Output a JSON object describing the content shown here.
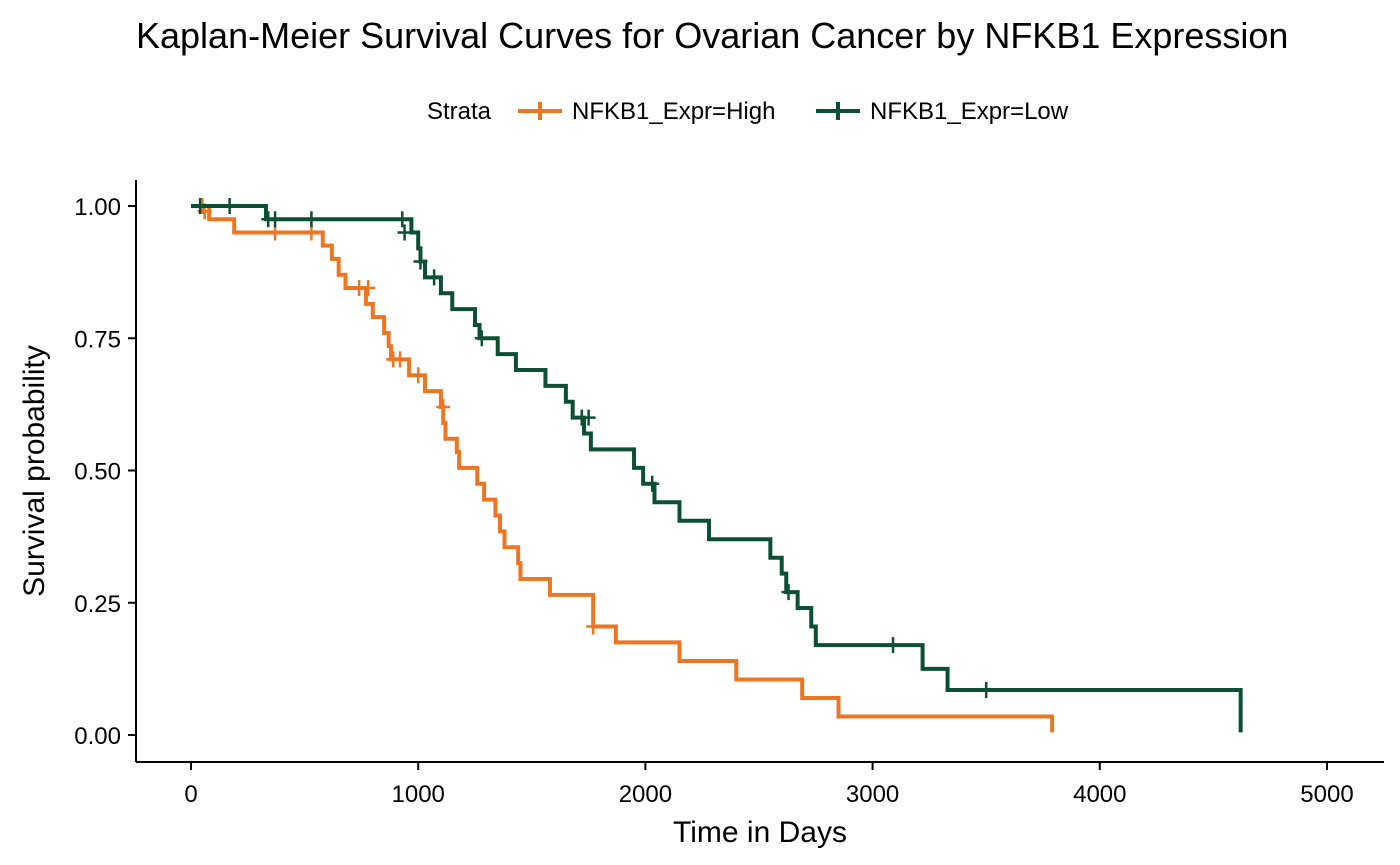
{
  "chart_data": {
    "type": "line",
    "title": "Kaplan-Meier Survival Curves for Ovarian Cancer by NFKB1 Expression",
    "xlabel": "Time in Days",
    "ylabel": "Survival probability",
    "xlim": [
      0,
      5000
    ],
    "ylim": [
      0,
      1
    ],
    "x_ticks": [
      "0",
      "1000",
      "2000",
      "3000",
      "4000",
      "5000"
    ],
    "y_ticks": [
      "0.00",
      "0.25",
      "0.50",
      "0.75",
      "1.00"
    ],
    "x_tick_values": [
      0,
      1000,
      2000,
      3000,
      4000,
      5000
    ],
    "y_tick_values": [
      0,
      0.25,
      0.5,
      0.75,
      1.0
    ],
    "grid": false,
    "legend": {
      "title": "Strata",
      "position": "top"
    },
    "series": [
      {
        "name": "NFKB1_Expr=High",
        "color": "#EE7623",
        "steps": [
          [
            0,
            1.0
          ],
          [
            80,
            0.975
          ],
          [
            190,
            0.95
          ],
          [
            520,
            0.95
          ],
          [
            580,
            0.925
          ],
          [
            620,
            0.9
          ],
          [
            650,
            0.87
          ],
          [
            680,
            0.845
          ],
          [
            770,
            0.815
          ],
          [
            800,
            0.79
          ],
          [
            850,
            0.76
          ],
          [
            870,
            0.735
          ],
          [
            880,
            0.71
          ],
          [
            960,
            0.68
          ],
          [
            1030,
            0.65
          ],
          [
            1100,
            0.62
          ],
          [
            1110,
            0.59
          ],
          [
            1120,
            0.56
          ],
          [
            1170,
            0.535
          ],
          [
            1180,
            0.505
          ],
          [
            1260,
            0.475
          ],
          [
            1290,
            0.445
          ],
          [
            1340,
            0.415
          ],
          [
            1360,
            0.385
          ],
          [
            1380,
            0.355
          ],
          [
            1440,
            0.325
          ],
          [
            1450,
            0.295
          ],
          [
            1580,
            0.265
          ],
          [
            1770,
            0.205
          ],
          [
            1870,
            0.175
          ],
          [
            2150,
            0.14
          ],
          [
            2400,
            0.105
          ],
          [
            2690,
            0.07
          ],
          [
            2850,
            0.035
          ],
          [
            3790,
            0.005
          ]
        ],
        "end": 3790,
        "censored": [
          [
            50,
            1.0
          ],
          [
            60,
            0.99
          ],
          [
            370,
            0.95
          ],
          [
            530,
            0.95
          ],
          [
            740,
            0.845
          ],
          [
            780,
            0.845
          ],
          [
            890,
            0.71
          ],
          [
            920,
            0.71
          ],
          [
            1000,
            0.68
          ],
          [
            1110,
            0.62
          ],
          [
            1770,
            0.205
          ]
        ]
      },
      {
        "name": "NFKB1_Expr=Low",
        "color": "#0B5032",
        "steps": [
          [
            0,
            1.0
          ],
          [
            330,
            0.975
          ],
          [
            970,
            0.95
          ],
          [
            1000,
            0.92
          ],
          [
            1010,
            0.895
          ],
          [
            1030,
            0.865
          ],
          [
            1100,
            0.835
          ],
          [
            1150,
            0.805
          ],
          [
            1250,
            0.775
          ],
          [
            1270,
            0.75
          ],
          [
            1350,
            0.72
          ],
          [
            1430,
            0.69
          ],
          [
            1560,
            0.66
          ],
          [
            1650,
            0.63
          ],
          [
            1680,
            0.6
          ],
          [
            1730,
            0.57
          ],
          [
            1760,
            0.54
          ],
          [
            1950,
            0.505
          ],
          [
            1990,
            0.475
          ],
          [
            2040,
            0.44
          ],
          [
            2150,
            0.405
          ],
          [
            2280,
            0.37
          ],
          [
            2550,
            0.335
          ],
          [
            2600,
            0.305
          ],
          [
            2620,
            0.27
          ],
          [
            2670,
            0.24
          ],
          [
            2730,
            0.205
          ],
          [
            2750,
            0.17
          ],
          [
            3220,
            0.125
          ],
          [
            3330,
            0.085
          ],
          [
            4620,
            0.005
          ]
        ],
        "end": 4620,
        "censored": [
          [
            40,
            1.0
          ],
          [
            170,
            1.0
          ],
          [
            340,
            0.975
          ],
          [
            370,
            0.975
          ],
          [
            530,
            0.975
          ],
          [
            930,
            0.975
          ],
          [
            940,
            0.95
          ],
          [
            1010,
            0.895
          ],
          [
            1070,
            0.865
          ],
          [
            1280,
            0.75
          ],
          [
            1720,
            0.6
          ],
          [
            1750,
            0.6
          ],
          [
            2030,
            0.475
          ],
          [
            2630,
            0.27
          ],
          [
            3090,
            0.17
          ],
          [
            3500,
            0.085
          ]
        ]
      }
    ]
  }
}
